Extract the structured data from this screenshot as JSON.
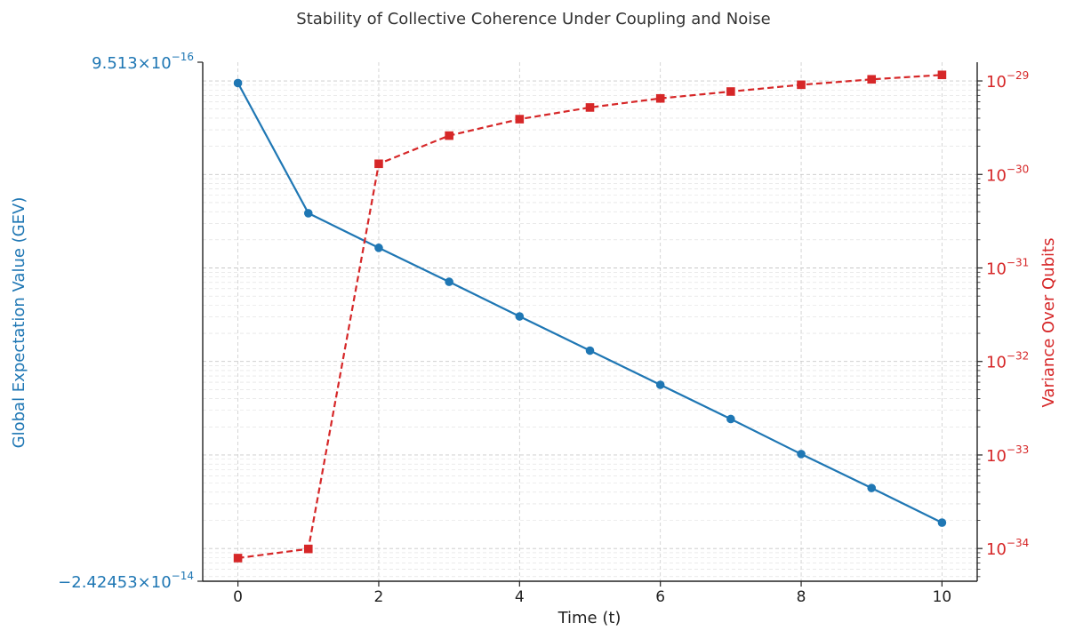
{
  "chart_data": {
    "type": "line",
    "title": "Stability of Collective Coherence Under Coupling and Noise",
    "xlabel": "Time (t)",
    "ylabel_left": "Global Expectation Value (GEV)",
    "ylabel_right": "Variance Over Qubits",
    "x": [
      0,
      1,
      2,
      3,
      4,
      5,
      6,
      7,
      8,
      9,
      10
    ],
    "xlim": [
      -0.5,
      10.5
    ],
    "x_ticks": [
      0,
      2,
      4,
      6,
      8,
      10
    ],
    "left_axis": {
      "scale": "linear",
      "lim": [
        -2.42453e-14,
        9.513e-16
      ],
      "tick_labels": [
        {
          "value": 9.513e-16,
          "mantissa": "9.513",
          "exponent": "−16"
        },
        {
          "value": -2.42453e-14,
          "mantissa": "−2.42453",
          "exponent": "−14"
        }
      ]
    },
    "right_axis": {
      "scale": "log",
      "lim_log10": [
        -34.35,
        -28.8
      ],
      "tick_exponents": [
        -34,
        -33,
        -32,
        -31,
        -30,
        -29
      ]
    },
    "grid": true,
    "series": [
      {
        "name": "Global Expectation Value (GEV)",
        "axis": "left",
        "color": "#1f77b4",
        "style": "solid",
        "marker": "circle",
        "values": [
          -6e-17,
          -6.38e-15,
          -8.06e-15,
          -9.71e-15,
          -1.139e-14,
          -1.305e-14,
          -1.471e-14,
          -1.637e-14,
          -1.807e-14,
          -1.972e-14,
          -2.14e-14
        ]
      },
      {
        "name": "Variance Over Qubits",
        "axis": "right",
        "color": "#d62728",
        "style": "dashed",
        "marker": "square",
        "values": [
          7.9e-35,
          9.9e-35,
          1.3e-30,
          2.6e-30,
          3.9e-30,
          5.2e-30,
          6.5e-30,
          7.7e-30,
          9.1e-30,
          1.04e-29,
          1.16e-29
        ]
      }
    ]
  },
  "colors": {
    "left_axis": "#1f77b4",
    "right_axis": "#d62728",
    "grid": "#cccccc"
  }
}
